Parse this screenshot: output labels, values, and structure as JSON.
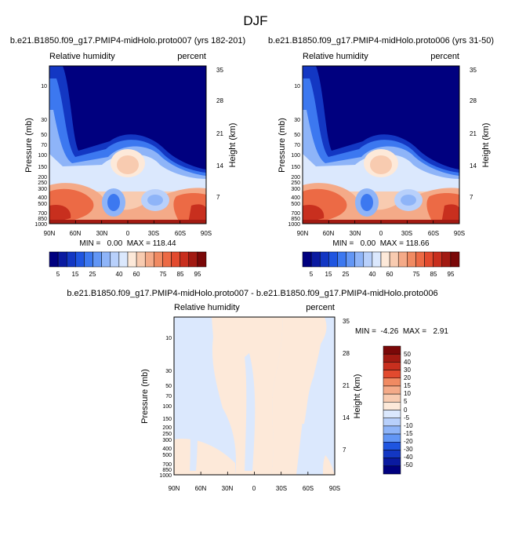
{
  "figure": {
    "title": "DJF"
  },
  "colors": {
    "palette": [
      "#00007f",
      "#0a1aa0",
      "#1337c3",
      "#1f55e0",
      "#3c78f0",
      "#6296f5",
      "#8eb4f8",
      "#b8d0fb",
      "#dbe8fd",
      "#fde9d9",
      "#f8cbb0",
      "#f4aa88",
      "#f08a62",
      "#ec6a45",
      "#e24a2e",
      "#c82f1e",
      "#a21a12",
      "#7a0808"
    ],
    "diff_palette": [
      "#00007f",
      "#0a1aa0",
      "#1337c3",
      "#1f55e0",
      "#3c78f0",
      "#6296f5",
      "#8eb4f8",
      "#b8d0fb",
      "#dbe8fd",
      "#fde9d9",
      "#f8cbb0",
      "#f4aa88",
      "#f08a62",
      "#ec6a45",
      "#e24a2e",
      "#c82f1e",
      "#a21a12",
      "#7a0808"
    ]
  },
  "chart_data": [
    {
      "type": "heatmap",
      "name": "panel-left",
      "title": "b.e21.B1850.f09_g17.PMIP4-midHolo.proto007 (yrs 182-201)",
      "subtitle_left": "Relative humidity",
      "subtitle_right": "percent",
      "xlabel": "",
      "ylabel": "Pressure (mb)",
      "ylabel_right": "Height (km)",
      "x_ticks": [
        "90N",
        "60N",
        "30N",
        "0",
        "30S",
        "60S",
        "90S"
      ],
      "y_ticks": [
        "10",
        "30",
        "50",
        "70",
        "100",
        "150",
        "200",
        "250",
        "300",
        "400",
        "500",
        "700",
        "850",
        "1000"
      ],
      "y_right_ticks": [
        "35",
        "28",
        "21",
        "14",
        "7"
      ],
      "min": 0.0,
      "max": 118.44,
      "min_max_text": "MIN =   0.00  MAX = 118.44",
      "colorbar_labels": [
        "5",
        "15",
        "25",
        "40",
        "60",
        "75",
        "85",
        "95"
      ]
    },
    {
      "type": "heatmap",
      "name": "panel-right",
      "title": "b.e21.B1850.f09_g17.PMIP4-midHolo.proto006 (yrs 31-50)",
      "subtitle_left": "Relative humidity",
      "subtitle_right": "percent",
      "xlabel": "",
      "ylabel": "Pressure (mb)",
      "ylabel_right": "Height (km)",
      "x_ticks": [
        "90N",
        "60N",
        "30N",
        "0",
        "30S",
        "60S",
        "90S"
      ],
      "y_ticks": [
        "10",
        "30",
        "50",
        "70",
        "100",
        "150",
        "200",
        "250",
        "300",
        "400",
        "500",
        "700",
        "850",
        "1000"
      ],
      "y_right_ticks": [
        "35",
        "28",
        "21",
        "14",
        "7"
      ],
      "min": 0.0,
      "max": 118.66,
      "min_max_text": "MIN =   0.00  MAX = 118.66",
      "colorbar_labels": [
        "5",
        "15",
        "25",
        "40",
        "60",
        "75",
        "85",
        "95"
      ]
    },
    {
      "type": "heatmap",
      "name": "panel-diff",
      "title": "b.e21.B1850.f09_g17.PMIP4-midHolo.proto007 - b.e21.B1850.f09_g17.PMIP4-midHolo.proto006",
      "subtitle_left": "Relative humidity",
      "subtitle_right": "percent",
      "xlabel": "",
      "ylabel": "Pressure (mb)",
      "ylabel_right": "Height (km)",
      "x_ticks": [
        "90N",
        "60N",
        "30N",
        "0",
        "30S",
        "60S",
        "90S"
      ],
      "y_ticks": [
        "10",
        "30",
        "50",
        "70",
        "100",
        "150",
        "200",
        "250",
        "300",
        "400",
        "500",
        "700",
        "850",
        "1000"
      ],
      "y_right_ticks": [
        "35",
        "28",
        "21",
        "14",
        "7"
      ],
      "min": -4.26,
      "max": 2.91,
      "min_max_text": "MIN =  -4.26  MAX =   2.91",
      "colorbar_labels": [
        "50",
        "40",
        "30",
        "20",
        "15",
        "10",
        "5",
        "0",
        "-5",
        "-10",
        "-15",
        "-20",
        "-30",
        "-40",
        "-50"
      ]
    }
  ]
}
